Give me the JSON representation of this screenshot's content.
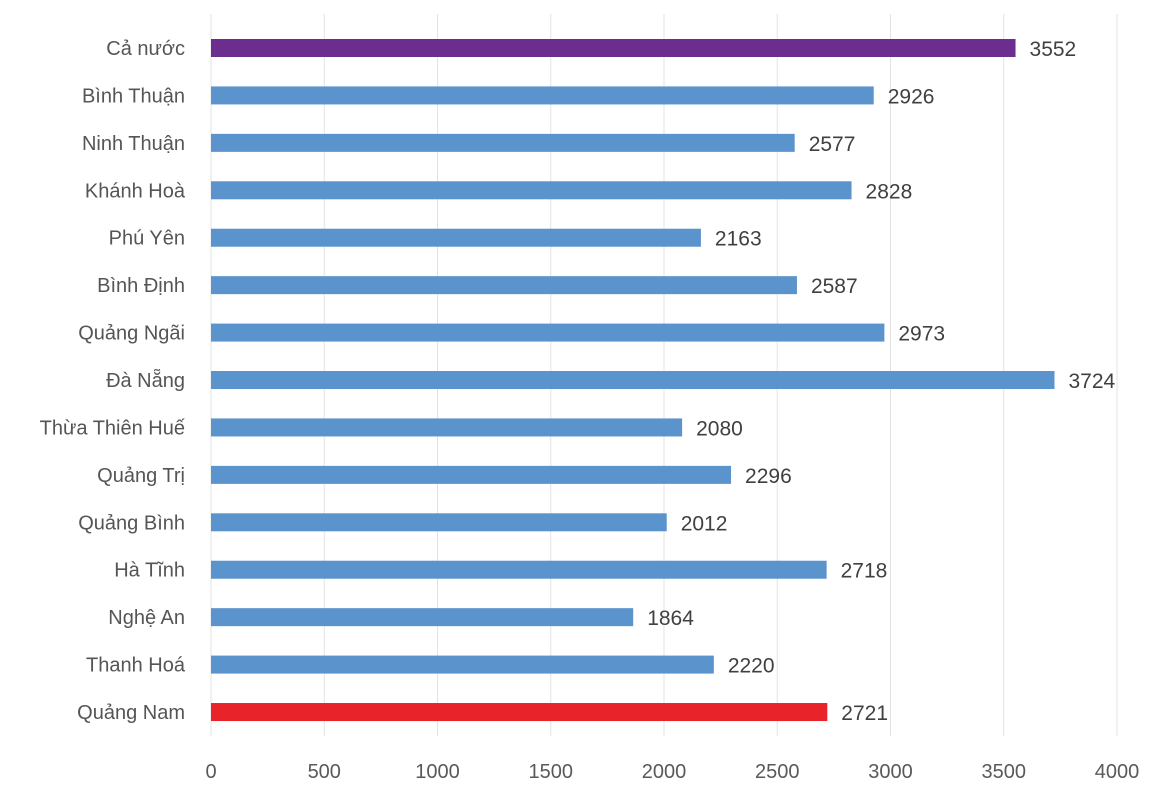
{
  "chart_data": {
    "type": "bar",
    "orientation": "horizontal",
    "title": "",
    "xlabel": "",
    "ylabel": "",
    "xlim": [
      0,
      4000
    ],
    "x_ticks": [
      "0",
      "500",
      "1000",
      "1500",
      "2000",
      "2500",
      "3000",
      "3500",
      "4000"
    ],
    "grid": true,
    "categories": [
      "Cả nước",
      "Bình Thuận",
      "Ninh Thuận",
      "Khánh Hoà",
      "Phú Yên",
      "Bình Định",
      "Quảng Ngãi",
      "Đà Nẵng",
      "Thừa Thiên Huế",
      "Quảng Trị",
      "Quảng Bình",
      "Hà Tĩnh",
      "Nghệ An",
      "Thanh Hoá",
      "Quảng Nam"
    ],
    "values": [
      3552,
      2926,
      2577,
      2828,
      2163,
      2587,
      2973,
      3724,
      2080,
      2296,
      2012,
      2718,
      1864,
      2220,
      2721
    ],
    "colors": [
      "#6B2E8F",
      "#5B93CC",
      "#5B93CC",
      "#5B93CC",
      "#5B93CC",
      "#5B93CC",
      "#5B93CC",
      "#5B93CC",
      "#5B93CC",
      "#5B93CC",
      "#5B93CC",
      "#5B93CC",
      "#5B93CC",
      "#5B93CC",
      "#E8242A"
    ]
  }
}
